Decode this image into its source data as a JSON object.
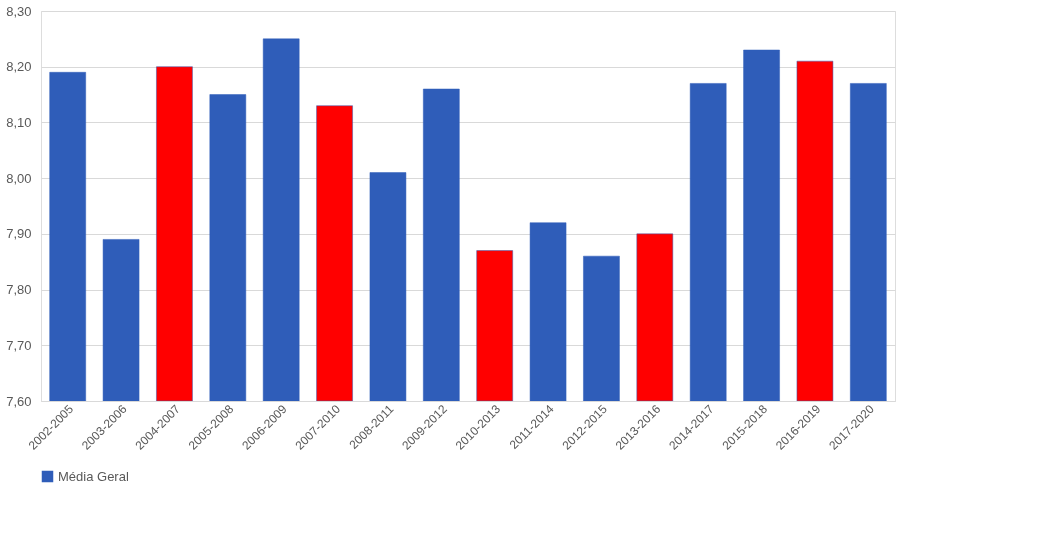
{
  "chart_data": {
    "type": "bar",
    "categories": [
      "2002-2005",
      "2003-2006",
      "2004-2007",
      "2005-2008",
      "2006-2009",
      "2007-2010",
      "2008-2011",
      "2009-2012",
      "2010-2013",
      "2011-2014",
      "2012-2015",
      "2013-2016",
      "2014-2017",
      "2015-2018",
      "2016-2019",
      "2017-2020"
    ],
    "series": [
      {
        "name": "Média Geral",
        "color": "#2f5db9",
        "values": [
          8.19,
          7.89,
          8.2,
          8.15,
          8.25,
          8.13,
          8.01,
          8.16,
          7.87,
          7.92,
          7.86,
          7.9,
          8.17,
          8.23,
          8.21,
          8.17
        ],
        "colors": [
          "#2f5db9",
          "#2f5db9",
          "#ff0000",
          "#2f5db9",
          "#2f5db9",
          "#ff0000",
          "#2f5db9",
          "#2f5db9",
          "#ff0000",
          "#2f5db9",
          "#2f5db9",
          "#ff0000",
          "#2f5db9",
          "#2f5db9",
          "#ff0000",
          "#2f5db9"
        ]
      }
    ],
    "ylim": [
      7.6,
      8.3
    ],
    "yticks": [
      {
        "value": 7.6,
        "label": "7,60"
      },
      {
        "value": 7.7,
        "label": "7,70"
      },
      {
        "value": 7.8,
        "label": "7,80"
      },
      {
        "value": 7.9,
        "label": "7,90"
      },
      {
        "value": 8.0,
        "label": "8,00"
      },
      {
        "value": 8.1,
        "label": "8,10"
      },
      {
        "value": 8.2,
        "label": "8,20"
      },
      {
        "value": 8.3,
        "label": "8,30"
      }
    ],
    "grid": "y",
    "legend": "bottom"
  }
}
